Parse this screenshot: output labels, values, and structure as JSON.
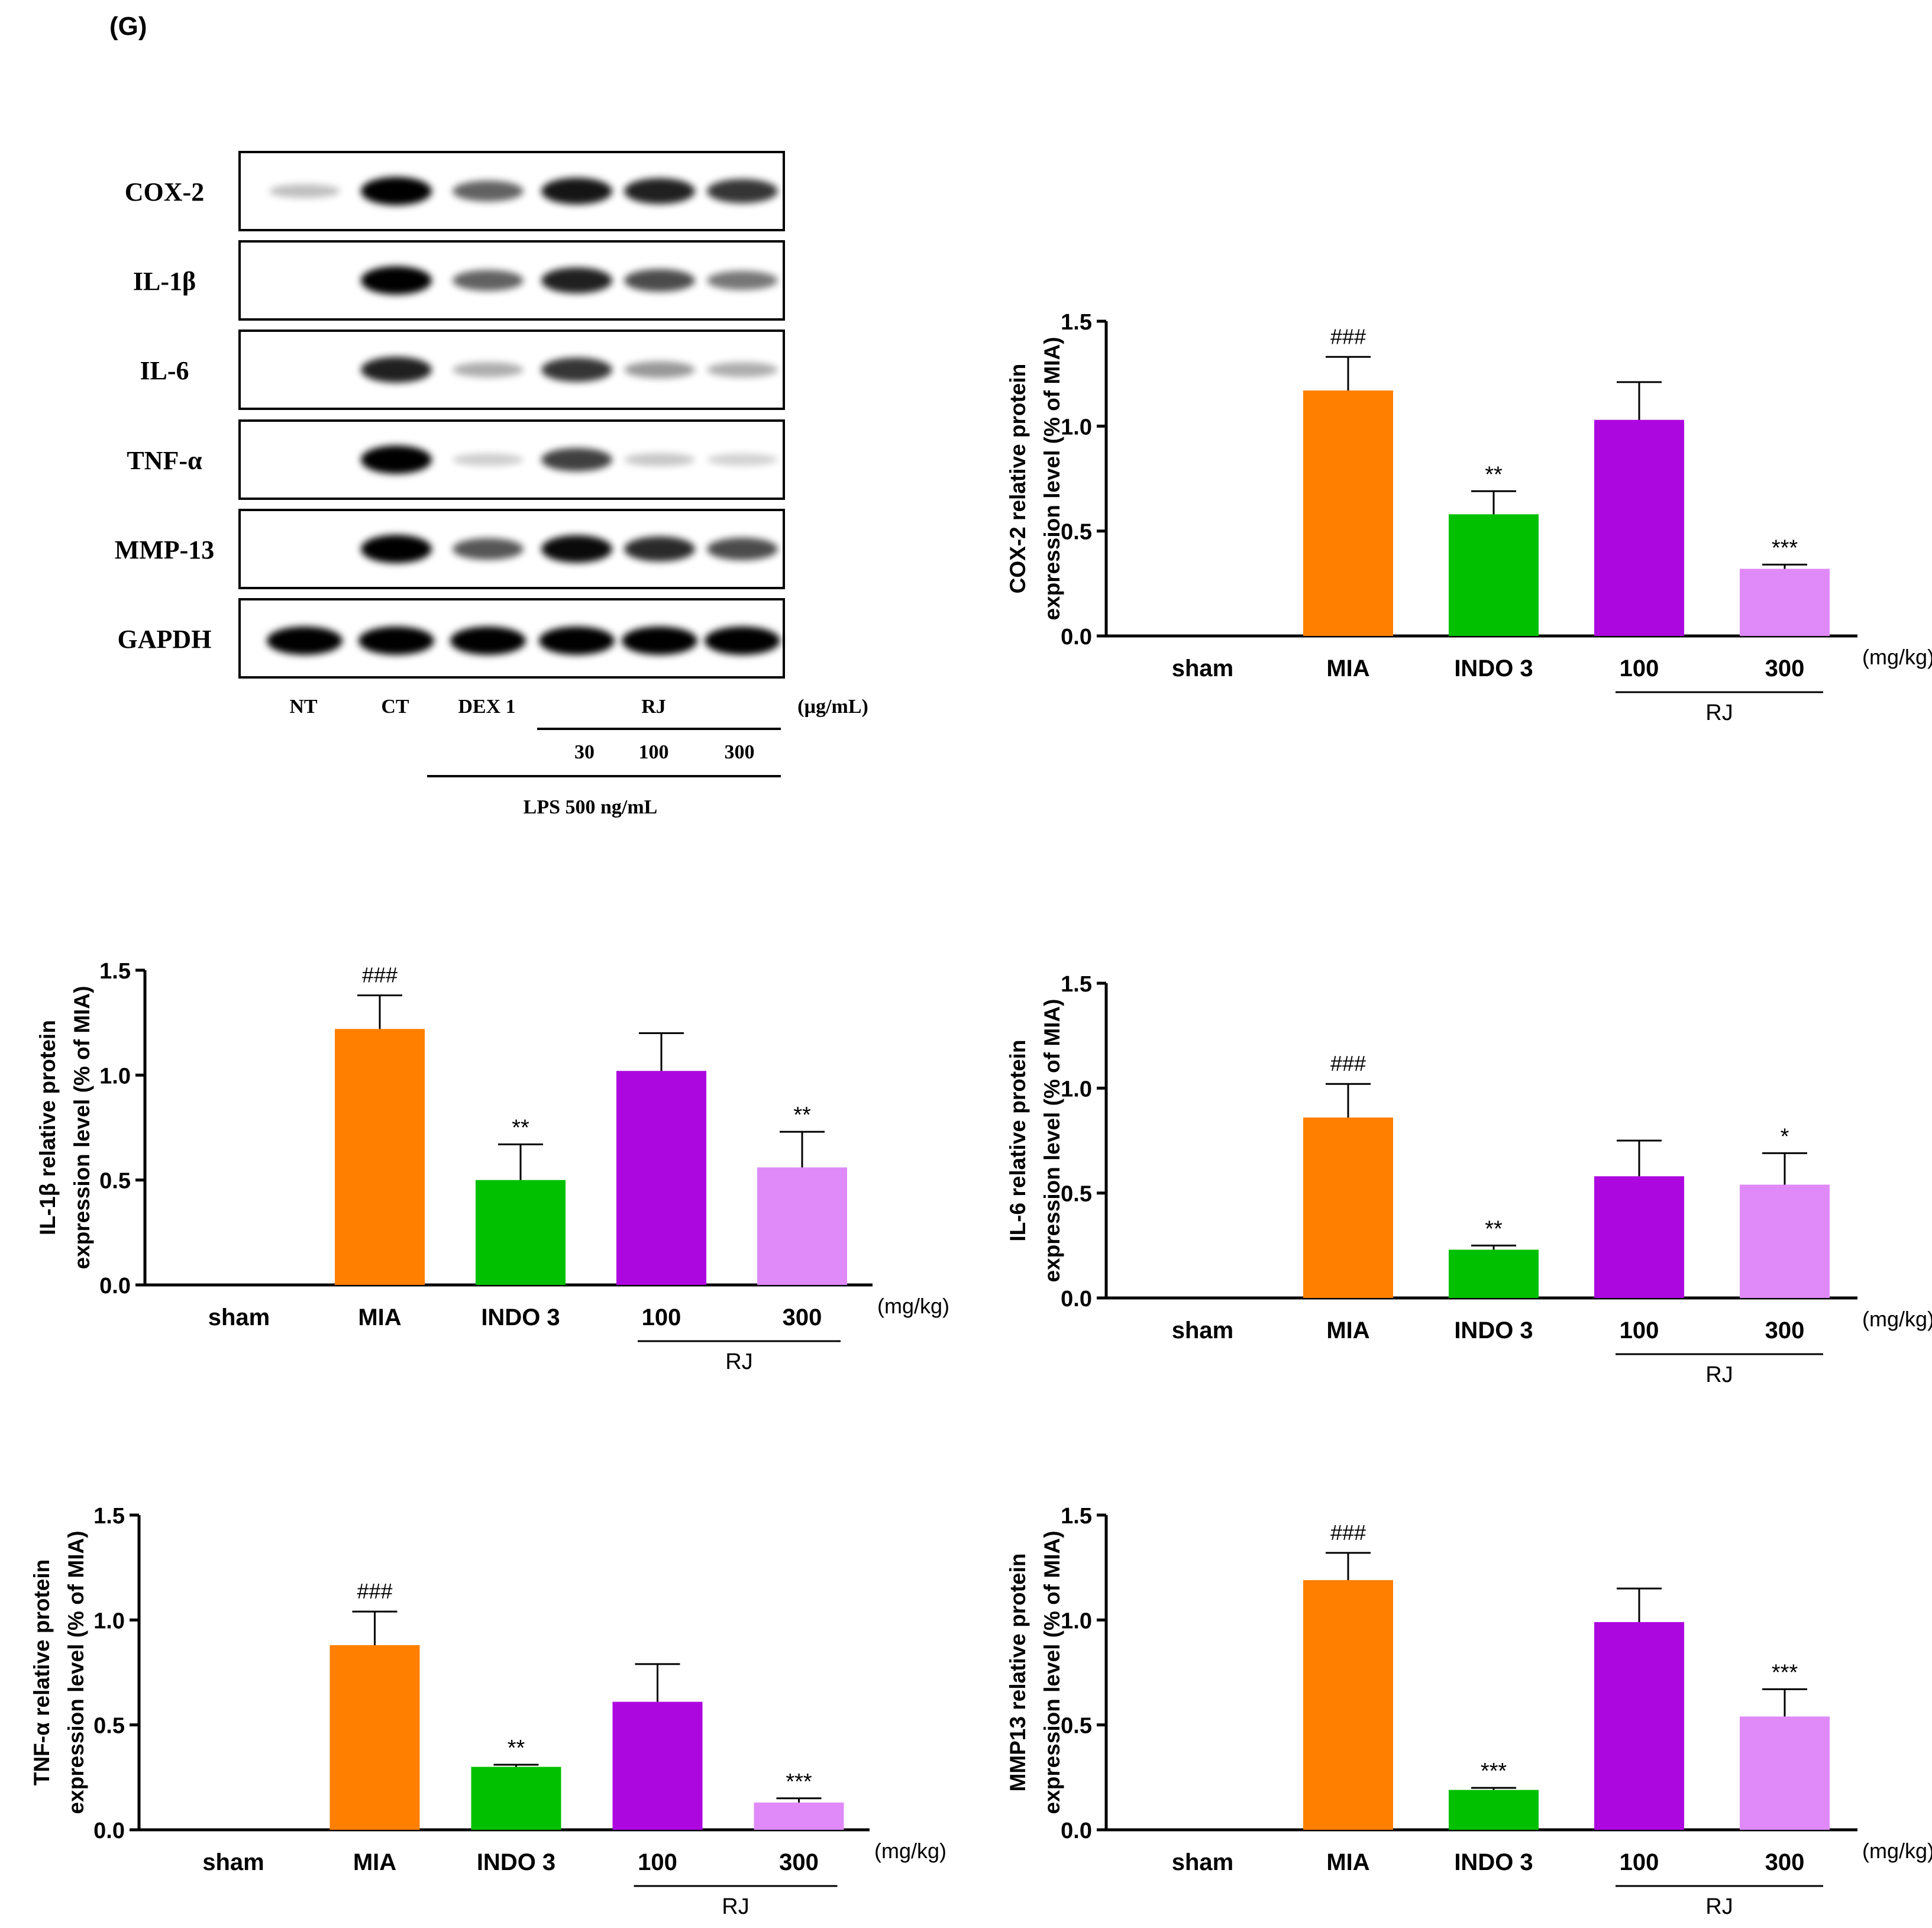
{
  "panel_label": "(G)",
  "western_blot": {
    "proteins": [
      "COX-2",
      "IL-1β",
      "IL-6",
      "TNF-α",
      "MMP-13",
      "GAPDH"
    ],
    "lane_labels": [
      "NT",
      "CT",
      "DEX 1"
    ],
    "rj_label": "RJ",
    "rj_doses": [
      "30",
      "100",
      "300"
    ],
    "unit_label": "(µg/mL)",
    "lps_label": "LPS 500 ng/mL",
    "band_intensities": [
      [
        0.12,
        1.0,
        0.55,
        0.9,
        0.85,
        0.75
      ],
      [
        0.0,
        1.0,
        0.55,
        0.85,
        0.65,
        0.45
      ],
      [
        0.0,
        0.85,
        0.2,
        0.75,
        0.3,
        0.2
      ],
      [
        0.0,
        1.0,
        0.05,
        0.7,
        0.08,
        0.03
      ],
      [
        0.0,
        1.0,
        0.6,
        0.95,
        0.8,
        0.65
      ],
      [
        1.0,
        1.0,
        1.0,
        1.0,
        1.0,
        1.0
      ]
    ]
  },
  "colors": {
    "sham": "#000000",
    "MIA": "#ff7f00",
    "INDO 3": "#00c000",
    "100": "#ad07e0",
    "300": "#df8af8"
  },
  "chart_data": [
    {
      "type": "bar",
      "ylabel_line1": "COX-2 relative protein",
      "ylabel_line2": "expression level (% of MIA)",
      "categories": [
        "sham",
        "MIA",
        "INDO 3",
        "100",
        "300"
      ],
      "values": [
        0.0,
        1.17,
        0.58,
        1.03,
        0.32
      ],
      "errors": [
        0.0,
        0.16,
        0.11,
        0.18,
        0.02
      ],
      "significance": [
        "",
        "###",
        "**",
        "",
        "***"
      ],
      "ylim": [
        0,
        1.5
      ],
      "yticks": [
        "0.0",
        "0.5",
        "1.0",
        "1.5"
      ],
      "unit_label": "(mg/kg)",
      "group_label": "RJ"
    },
    {
      "type": "bar",
      "ylabel_line1": "IL-1β relative protein",
      "ylabel_line2": "expression level (% of MIA)",
      "categories": [
        "sham",
        "MIA",
        "INDO 3",
        "100",
        "300"
      ],
      "values": [
        0.0,
        1.22,
        0.5,
        1.02,
        0.56
      ],
      "errors": [
        0.0,
        0.16,
        0.17,
        0.18,
        0.17
      ],
      "significance": [
        "",
        "###",
        "**",
        "",
        "**"
      ],
      "ylim": [
        0,
        1.5
      ],
      "yticks": [
        "0.0",
        "0.5",
        "1.0",
        "1.5"
      ],
      "unit_label": "(mg/kg)",
      "group_label": "RJ"
    },
    {
      "type": "bar",
      "ylabel_line1": "IL-6 relative protein",
      "ylabel_line2": "expression level (% of MIA)",
      "categories": [
        "sham",
        "MIA",
        "INDO 3",
        "100",
        "300"
      ],
      "values": [
        0.0,
        0.86,
        0.23,
        0.58,
        0.54
      ],
      "errors": [
        0.0,
        0.16,
        0.02,
        0.17,
        0.15
      ],
      "significance": [
        "",
        "###",
        "**",
        "",
        "*"
      ],
      "ylim": [
        0,
        1.5
      ],
      "yticks": [
        "0.0",
        "0.5",
        "1.0",
        "1.5"
      ],
      "unit_label": "(mg/kg)",
      "group_label": "RJ"
    },
    {
      "type": "bar",
      "ylabel_line1": "TNF-α relative protein",
      "ylabel_line2": "expression level (% of MIA)",
      "categories": [
        "sham",
        "MIA",
        "INDO 3",
        "100",
        "300"
      ],
      "values": [
        0.0,
        0.88,
        0.3,
        0.61,
        0.13
      ],
      "errors": [
        0.0,
        0.16,
        0.01,
        0.18,
        0.02
      ],
      "significance": [
        "",
        "###",
        "**",
        "",
        "***"
      ],
      "ylim": [
        0,
        1.5
      ],
      "yticks": [
        "0.0",
        "0.5",
        "1.0",
        "1.5"
      ],
      "unit_label": "(mg/kg)",
      "group_label": "RJ"
    },
    {
      "type": "bar",
      "ylabel_line1": "MMP13 relative protein",
      "ylabel_line2": "expression level (% of MIA)",
      "categories": [
        "sham",
        "MIA",
        "INDO 3",
        "100",
        "300"
      ],
      "values": [
        0.0,
        1.19,
        0.19,
        0.99,
        0.54
      ],
      "errors": [
        0.0,
        0.13,
        0.01,
        0.16,
        0.13
      ],
      "significance": [
        "",
        "###",
        "***",
        "",
        "***"
      ],
      "ylim": [
        0,
        1.5
      ],
      "yticks": [
        "0.0",
        "0.5",
        "1.0",
        "1.5"
      ],
      "unit_label": "(mg/kg)",
      "group_label": "RJ"
    }
  ]
}
